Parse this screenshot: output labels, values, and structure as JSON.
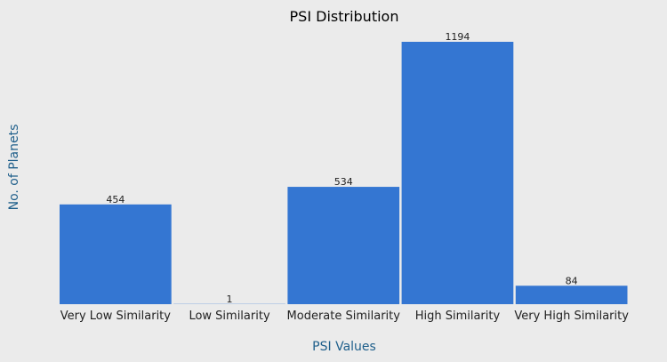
{
  "chart_data": {
    "type": "bar",
    "title": "PSI Distribution",
    "xlabel": "PSI Values",
    "ylabel": "No. of Planets",
    "categories": [
      "Very Low Similarity",
      "Low Similarity",
      "Moderate Similarity",
      "High Similarity",
      "Very High Similarity"
    ],
    "values": [
      454,
      1,
      534,
      1194,
      84
    ],
    "data_labels": [
      "454",
      "1",
      "534",
      "1194",
      "84"
    ],
    "ylim": [
      0,
      1194
    ],
    "grid": false,
    "legend": "none",
    "bar_color": "#3476d2",
    "background_color": "#ebebeb"
  }
}
